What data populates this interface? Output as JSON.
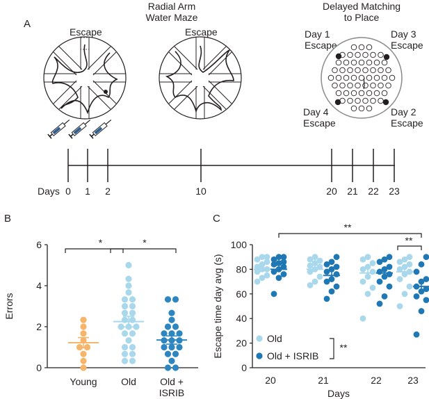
{
  "panel_a": {
    "label": "A",
    "radial_title_1": "Radial Arm",
    "radial_title_2": "Water Maze",
    "escape_left": "Escape",
    "escape_right": "Escape",
    "dmp_title_1": "Delayed Matching",
    "dmp_title_2": "to Place",
    "day1_1": "Day 1",
    "day1_2": "Escape",
    "day3_1": "Day 3",
    "day3_2": "Escape",
    "day4_1": "Day 4",
    "day4_2": "Escape",
    "day2_1": "Day 2",
    "day2_2": "Escape",
    "timeline_label": "Days",
    "timeline_days": [
      "0",
      "1",
      "2",
      "10",
      "20",
      "21",
      "22",
      "23"
    ]
  },
  "chart_data": [
    {
      "panel": "B",
      "type": "scatter",
      "ylabel": "Errors",
      "ylim": [
        0,
        6
      ],
      "yticks": [
        "0",
        "2",
        "4",
        "6"
      ],
      "categories": [
        "Young",
        "Old",
        "Old +\nISRIB"
      ],
      "colors": [
        "#f5b56b",
        "#a9d8ec",
        "#2e86c1"
      ],
      "series": [
        {
          "values": [
            0,
            0.33,
            0.67,
            1,
            1,
            1.33,
            1.67,
            2,
            2.33
          ],
          "mean": 1.22,
          "sem": 0.25
        },
        {
          "values": [
            0.33,
            0.33,
            0.67,
            0.67,
            1,
            1,
            1.33,
            1.67,
            1.67,
            2,
            2,
            2,
            2.33,
            2.33,
            2.67,
            2.67,
            3,
            3,
            3.33,
            3.33,
            3.67,
            4,
            4.33,
            5
          ],
          "mean": 2.25,
          "sem": 0.26
        },
        {
          "values": [
            0,
            0,
            0.33,
            0.67,
            0.67,
            1,
            1,
            1,
            1.33,
            1.33,
            1.33,
            1.67,
            1.67,
            1.67,
            2,
            2,
            2.33,
            2.67,
            3.33,
            3.33
          ],
          "mean": 1.35,
          "sem": 0.2
        }
      ],
      "annotations": [
        {
          "text": "*",
          "from": "Young",
          "to": "Old"
        },
        {
          "text": "*",
          "from": "Old",
          "to": "Old +\nISRIB"
        }
      ]
    },
    {
      "panel": "C",
      "type": "scatter",
      "xlabel": "Days",
      "ylabel": "Escape time day avg (s)",
      "ylim": [
        0,
        100
      ],
      "yticks": [
        "0",
        "20",
        "40",
        "60",
        "80",
        "100"
      ],
      "categories": [
        "20",
        "21",
        "22",
        "23"
      ],
      "series": [
        {
          "name": "Old",
          "color": "#a9d8ec",
          "values": [
            [
              70,
              73,
              75,
              78,
              80,
              80,
              82,
              84,
              86,
              88,
              90,
              90
            ],
            [
              67,
              70,
              74,
              78,
              80,
              82,
              83,
              85,
              87,
              88,
              90
            ],
            [
              40,
              60,
              65,
              70,
              74,
              78,
              80,
              82,
              85,
              88,
              90
            ],
            [
              50,
              60,
              66,
              72,
              76,
              78,
              80,
              82,
              84,
              86,
              88,
              90
            ]
          ],
          "means": [
            80,
            80,
            77,
            78
          ],
          "sems": [
            2,
            2,
            4,
            3
          ]
        },
        {
          "name": "Old + ISRIB",
          "color": "#1f78b4",
          "values": [
            [
              60,
              73,
              76,
              78,
              80,
              82,
              84,
              85,
              86,
              88,
              90,
              90
            ],
            [
              56,
              62,
              66,
              70,
              72,
              76,
              78,
              80,
              82,
              84,
              86,
              90
            ],
            [
              52,
              58,
              66,
              70,
              74,
              76,
              78,
              80,
              82,
              86,
              88,
              90
            ],
            [
              27,
              46,
              55,
              58,
              62,
              64,
              66,
              70,
              72,
              78,
              84,
              90
            ]
          ],
          "means": [
            80,
            75,
            77,
            66
          ],
          "sems": [
            2,
            3,
            3,
            4
          ]
        }
      ],
      "annotations": [
        {
          "text": "**",
          "from": "20",
          "to": "23"
        },
        {
          "text": "**",
          "within": "23"
        },
        {
          "text": "**",
          "between": "legend"
        }
      ]
    }
  ]
}
